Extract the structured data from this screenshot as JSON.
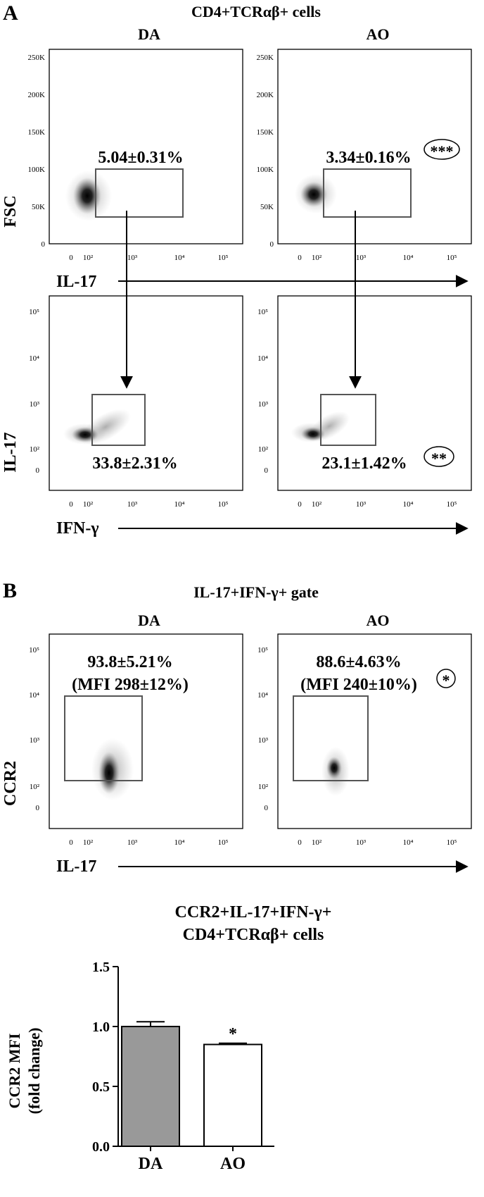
{
  "panel_a": {
    "letter": "A",
    "title": "CD4+TCRαβ+ cells",
    "col_labels": [
      "DA",
      "AO"
    ],
    "row1": {
      "ylabel": "FSC",
      "xlabel": "IL-17",
      "y_ticks": [
        "250K",
        "200K",
        "150K",
        "100K",
        "50K",
        "0"
      ],
      "x_ticks": [
        "0",
        "10²",
        "10³",
        "10⁴",
        "10⁵"
      ],
      "gate_values": [
        "5.04±0.31%",
        "3.34±0.16%"
      ],
      "significance": [
        "",
        "***"
      ]
    },
    "row2": {
      "ylabel": "IL-17",
      "xlabel": "IFN-γ",
      "y_ticks": [
        "10⁵",
        "10⁴",
        "10³",
        "10²",
        "0"
      ],
      "x_ticks": [
        "0",
        "10²",
        "10³",
        "10⁴",
        "10⁵"
      ],
      "gate_values": [
        "33.8±2.31%",
        "23.1±1.42%"
      ],
      "significance": [
        "",
        "**"
      ]
    }
  },
  "panel_b": {
    "letter": "B",
    "title": "IL-17+IFN-γ+ gate",
    "col_labels": [
      "DA",
      "AO"
    ],
    "ylabel": "CCR2",
    "xlabel": "IL-17",
    "y_ticks": [
      "10⁵",
      "10⁴",
      "10³",
      "10²",
      "0"
    ],
    "x_ticks": [
      "0",
      "10²",
      "10³",
      "10⁴",
      "10⁵"
    ],
    "gate_values": [
      "93.8±5.21%",
      "88.6±4.63%"
    ],
    "mfi_values": [
      "(MFI 298±12%)",
      "(MFI 240±10%)"
    ],
    "significance": [
      "",
      "*"
    ]
  },
  "chart_data": [
    {
      "type": "bar",
      "title": "CCR2+IL-17+IFN-γ+",
      "subtitle": "CD4+TCRαβ+ cells",
      "categories": [
        "DA",
        "AO"
      ],
      "values": [
        1.0,
        0.85
      ],
      "errors": [
        0.04,
        0.01
      ],
      "colors": [
        "#999999",
        "#ffffff"
      ],
      "significance": [
        "",
        "*"
      ],
      "ylabel_line1": "CCR2 MFI",
      "ylabel_line2": "(fold change)",
      "ylim": [
        0,
        1.5
      ],
      "y_ticks": [
        "0.0",
        "0.5",
        "1.0",
        "1.5"
      ]
    }
  ]
}
